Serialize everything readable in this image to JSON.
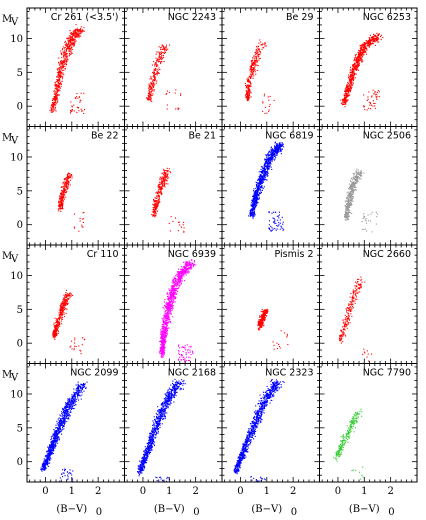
{
  "chart_data": {
    "type": "scatter",
    "layout": {
      "rows": 4,
      "cols": 4
    },
    "xlabel": "(B−V)",
    "xlabel_sub": "0",
    "ylabel": "M",
    "ylabel_sub": "V",
    "xlim": [
      -0.7,
      3.0
    ],
    "ylim": [
      14.5,
      -3.0
    ],
    "x_ticks": [
      0,
      1,
      2
    ],
    "y_ticks": [
      0,
      5,
      10
    ],
    "panels": [
      {
        "title": "Cr 261 (<3.5')",
        "color": "#ff0000",
        "sequence": [
          [
            0.25,
            -0.5
          ],
          [
            0.45,
            3.0
          ],
          [
            0.65,
            6.5
          ],
          [
            0.9,
            9.5
          ],
          [
            1.3,
            11.5
          ]
        ],
        "turnoff": [
          0.4,
          3.0
        ],
        "density": 0.85
      },
      {
        "title": "NGC 2243",
        "color": "#ff0000",
        "sequence": [
          [
            0.2,
            1.0
          ],
          [
            0.35,
            3.5
          ],
          [
            0.55,
            6.5
          ],
          [
            0.8,
            9.0
          ]
        ],
        "turnoff": [
          0.35,
          3.5
        ],
        "density": 0.35
      },
      {
        "title": "Be 29",
        "color": "#ff0000",
        "sequence": [
          [
            0.25,
            1.0
          ],
          [
            0.3,
            3.5
          ],
          [
            0.5,
            6.5
          ],
          [
            0.85,
            9.5
          ]
        ],
        "turnoff": [
          0.3,
          3.0
        ],
        "density": 0.4
      },
      {
        "title": "NGC 6253",
        "color": "#ff0000",
        "sequence": [
          [
            0.2,
            0.5
          ],
          [
            0.45,
            3.5
          ],
          [
            0.7,
            6.5
          ],
          [
            1.0,
            9.0
          ],
          [
            1.5,
            10.5
          ]
        ],
        "turnoff": [
          0.45,
          3.5
        ],
        "density": 1.0
      },
      {
        "title": "Be 22",
        "color": "#ff0000",
        "sequence": [
          [
            0.55,
            2.5
          ],
          [
            0.6,
            4.0
          ],
          [
            0.75,
            6.0
          ],
          [
            0.9,
            7.5
          ]
        ],
        "turnoff": [
          0.55,
          3.0
        ],
        "density": 0.35
      },
      {
        "title": "Be 21",
        "color": "#ff0000",
        "sequence": [
          [
            0.4,
            1.5
          ],
          [
            0.5,
            3.5
          ],
          [
            0.7,
            6.0
          ],
          [
            0.9,
            8.0
          ]
        ],
        "turnoff": [
          0.45,
          2.5
        ],
        "density": 0.4
      },
      {
        "title": "NGC 6819",
        "color": "#0000ff",
        "sequence": [
          [
            0.4,
            1.5
          ],
          [
            0.55,
            4.0
          ],
          [
            0.8,
            7.0
          ],
          [
            1.1,
            10.0
          ],
          [
            1.5,
            12.0
          ]
        ],
        "turnoff": [
          0.55,
          3.0
        ],
        "density": 1.3
      },
      {
        "title": "NGC 2506",
        "color": "#999999",
        "sequence": [
          [
            0.3,
            1.0
          ],
          [
            0.4,
            3.5
          ],
          [
            0.55,
            6.0
          ],
          [
            0.8,
            8.0
          ]
        ],
        "turnoff": [
          0.4,
          3.0
        ],
        "density": 0.6
      },
      {
        "title": "Cr 110",
        "color": "#ff0000",
        "sequence": [
          [
            0.3,
            1.0
          ],
          [
            0.45,
            3.0
          ],
          [
            0.65,
            5.5
          ],
          [
            0.9,
            7.5
          ]
        ],
        "turnoff": [
          0.4,
          2.5
        ],
        "density": 0.5
      },
      {
        "title": "NGC 6939",
        "color": "#ff00ff",
        "sequence": [
          [
            0.7,
            -1.5
          ],
          [
            0.8,
            2.0
          ],
          [
            1.0,
            6.0
          ],
          [
            1.3,
            9.5
          ],
          [
            1.8,
            12.0
          ]
        ],
        "turnoff": [
          0.8,
          1.0
        ],
        "density": 1.4
      },
      {
        "title": "Pismis 2",
        "color": "#ff0000",
        "sequence": [
          [
            0.7,
            2.5
          ],
          [
            0.8,
            3.5
          ],
          [
            0.95,
            5.0
          ]
        ],
        "turnoff": [
          0.7,
          3.0
        ],
        "density": 0.35
      },
      {
        "title": "NGC 2660",
        "color": "#ff0000",
        "sequence": [
          [
            0.1,
            0.5
          ],
          [
            0.3,
            3.5
          ],
          [
            0.55,
            6.5
          ],
          [
            0.85,
            9.5
          ]
        ],
        "turnoff": [
          0.2,
          1.0
        ],
        "density": 0.3
      },
      {
        "title": "NGC 2099",
        "color": "#0000ff",
        "sequence": [
          [
            -0.1,
            -1.0
          ],
          [
            0.2,
            2.0
          ],
          [
            0.5,
            5.0
          ],
          [
            0.9,
            8.5
          ],
          [
            1.4,
            11.5
          ]
        ],
        "turnoff": [
          0.0,
          0.0
        ],
        "density": 1.3
      },
      {
        "title": "NGC 2168",
        "color": "#0000ff",
        "sequence": [
          [
            -0.15,
            -1.5
          ],
          [
            0.15,
            1.5
          ],
          [
            0.5,
            5.5
          ],
          [
            0.9,
            9.0
          ],
          [
            1.4,
            12.0
          ]
        ],
        "turnoff": [
          -0.1,
          -1.0
        ],
        "density": 1.2
      },
      {
        "title": "NGC 2323",
        "color": "#0000ff",
        "sequence": [
          [
            -0.2,
            -1.5
          ],
          [
            0.1,
            1.5
          ],
          [
            0.5,
            5.5
          ],
          [
            0.9,
            9.0
          ],
          [
            1.4,
            12.0
          ]
        ],
        "turnoff": [
          -0.15,
          -1.0
        ],
        "density": 1.2
      },
      {
        "title": "NGC 7790",
        "color": "#33cc33",
        "sequence": [
          [
            -0.1,
            0.5
          ],
          [
            0.2,
            3.0
          ],
          [
            0.5,
            5.5
          ],
          [
            0.8,
            7.5
          ]
        ],
        "turnoff": [
          -0.05,
          0.5
        ],
        "density": 0.3
      }
    ]
  }
}
